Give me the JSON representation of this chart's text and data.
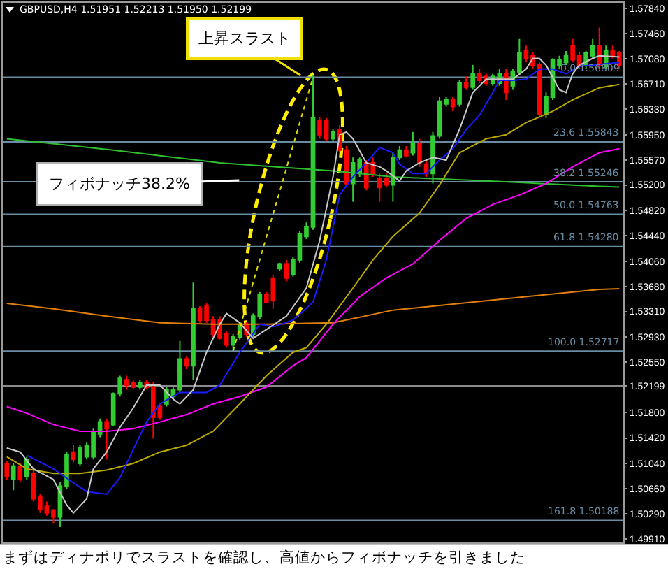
{
  "chart_data": {
    "type": "candlestick",
    "title": "GBPUSD,H4 1.51951 1.52213 1.51950 1.52199",
    "categories": [
      null,
      null,
      null,
      null,
      null,
      null,
      null,
      null,
      null,
      null,
      null,
      null,
      null,
      null,
      null,
      null,
      null,
      null,
      null,
      null,
      null,
      null,
      null,
      null,
      null,
      null,
      null,
      null,
      null,
      null,
      null,
      null,
      null,
      null,
      null,
      null,
      null,
      null,
      null,
      null,
      null,
      null,
      null,
      null,
      null,
      null,
      null,
      null,
      null,
      null,
      null,
      null,
      null,
      null,
      null,
      null,
      null,
      null,
      null,
      null,
      null,
      null,
      null,
      null,
      null,
      null,
      null,
      null,
      null,
      null,
      null,
      null,
      null,
      null,
      null,
      null,
      null,
      null,
      null,
      null,
      null,
      null,
      null,
      null,
      null,
      null,
      null,
      null,
      null,
      null,
      null,
      null,
      null
    ],
    "ohlc": [
      [
        1.5104,
        1.5108,
        1.508,
        1.5085
      ],
      [
        1.508,
        1.5104,
        1.5064,
        1.51
      ],
      [
        1.51,
        1.5104,
        1.5076,
        1.508
      ],
      [
        1.5085,
        1.5114,
        1.508,
        1.511
      ],
      [
        1.5089,
        1.5094,
        1.5047,
        1.5051
      ],
      [
        1.5055,
        1.5058,
        1.503,
        1.5036
      ],
      [
        1.504,
        1.5047,
        1.5026,
        1.503
      ],
      [
        1.5034,
        1.5036,
        1.5015,
        1.5024
      ],
      [
        1.5024,
        1.5076,
        1.5009,
        1.507
      ],
      [
        1.507,
        1.5121,
        1.5066,
        1.5117
      ],
      [
        1.5121,
        1.5131,
        1.5106,
        1.511
      ],
      [
        1.5104,
        1.5131,
        1.51,
        1.5127
      ],
      [
        1.5114,
        1.5135,
        1.511,
        1.5131
      ],
      [
        1.5114,
        1.5156,
        1.511,
        1.5152
      ],
      [
        1.5148,
        1.5171,
        1.5143,
        1.5166
      ],
      [
        1.5166,
        1.5171,
        1.511,
        1.5156
      ],
      [
        1.5162,
        1.521,
        1.516,
        1.5208
      ],
      [
        1.5208,
        1.5235,
        1.5204,
        1.5231
      ],
      [
        1.5229,
        1.5235,
        1.5214,
        1.5221
      ],
      [
        1.5225,
        1.5229,
        1.5214,
        1.5218
      ],
      [
        1.5218,
        1.5229,
        1.5214,
        1.5225
      ],
      [
        1.5225,
        1.5229,
        1.5214,
        1.5218
      ],
      [
        1.5218,
        1.5225,
        1.5141,
        1.5173
      ],
      [
        1.5189,
        1.5193,
        1.5169,
        1.5173
      ],
      [
        1.5193,
        1.5218,
        1.5189,
        1.5214
      ],
      [
        1.5204,
        1.5218,
        1.52,
        1.5214
      ],
      [
        1.5214,
        1.5287,
        1.521,
        1.526
      ],
      [
        1.526,
        1.5264,
        1.5245,
        1.525
      ],
      [
        1.525,
        1.5374,
        1.5229,
        1.5335
      ],
      [
        1.5335,
        1.5339,
        1.5314,
        1.5318
      ],
      [
        1.5339,
        1.5343,
        1.5314,
        1.5318
      ],
      [
        1.5318,
        1.5324,
        1.5293,
        1.5297
      ],
      [
        1.5318,
        1.5324,
        1.5289,
        1.5291
      ],
      [
        1.5297,
        1.5301,
        1.5277,
        1.5281
      ],
      [
        1.5281,
        1.5297,
        1.5272,
        1.5293
      ],
      [
        1.5293,
        1.5316,
        1.5289,
        1.5312
      ],
      [
        1.5312,
        1.5316,
        1.5293,
        1.5297
      ],
      [
        1.5297,
        1.5328,
        1.5293,
        1.5324
      ],
      [
        1.5324,
        1.536,
        1.532,
        1.5356
      ],
      [
        1.5356,
        1.536,
        1.5343,
        1.5345
      ],
      [
        1.5381,
        1.5385,
        1.5335,
        1.5347
      ],
      [
        1.5395,
        1.5404,
        1.5391,
        1.5402
      ],
      [
        1.5402,
        1.5408,
        1.5376,
        1.5381
      ],
      [
        1.5387,
        1.5412,
        1.5383,
        1.5408
      ],
      [
        1.5408,
        1.5451,
        1.5404,
        1.5447
      ],
      [
        1.5443,
        1.5464,
        1.5439,
        1.5457
      ],
      [
        1.5457,
        1.5684,
        1.5453,
        1.562
      ],
      [
        1.5616,
        1.5622,
        1.5589,
        1.5595
      ],
      [
        1.5616,
        1.562,
        1.5585,
        1.5589
      ],
      [
        1.5589,
        1.5603,
        1.5585,
        1.5599
      ],
      [
        1.5603,
        1.5609,
        1.5568,
        1.5572
      ],
      [
        1.5572,
        1.5578,
        1.5516,
        1.5522
      ],
      [
        1.5522,
        1.5561,
        1.5495,
        1.5553
      ],
      [
        1.5537,
        1.5561,
        1.5532,
        1.5557
      ],
      [
        1.5553,
        1.5557,
        1.5512,
        1.5516
      ],
      [
        1.5553,
        1.5561,
        1.5532,
        1.5537
      ],
      [
        1.553,
        1.5537,
        1.5495,
        1.5516
      ],
      [
        1.553,
        1.5537,
        1.5516,
        1.552
      ],
      [
        1.552,
        1.5568,
        1.5495,
        1.5561
      ],
      [
        1.5561,
        1.5578,
        1.5557,
        1.5572
      ],
      [
        1.5572,
        1.5578,
        1.5561,
        1.5564
      ],
      [
        1.5568,
        1.5599,
        1.5564,
        1.5582
      ],
      [
        1.5582,
        1.5589,
        1.5547,
        1.5553
      ],
      [
        1.5551,
        1.5557,
        1.5532,
        1.5537
      ],
      [
        1.5537,
        1.5599,
        1.5522,
        1.5593
      ],
      [
        1.5593,
        1.5651,
        1.5589,
        1.5645
      ],
      [
        1.5641,
        1.5651,
        1.5637,
        1.5647
      ],
      [
        1.5647,
        1.5651,
        1.563,
        1.5637
      ],
      [
        1.5641,
        1.5676,
        1.5637,
        1.5672
      ],
      [
        1.5672,
        1.5682,
        1.5662,
        1.5666
      ],
      [
        1.5666,
        1.5699,
        1.5662,
        1.5686
      ],
      [
        1.5686,
        1.5693,
        1.5672,
        1.5676
      ],
      [
        1.5682,
        1.5686,
        1.5668,
        1.5672
      ],
      [
        1.5672,
        1.5686,
        1.5668,
        1.5682
      ],
      [
        1.5672,
        1.5693,
        1.5668,
        1.5686
      ],
      [
        1.5686,
        1.5693,
        1.5647,
        1.5658
      ],
      [
        1.5668,
        1.5693,
        1.5662,
        1.5689
      ],
      [
        1.5689,
        1.5738,
        1.5684,
        1.5718
      ],
      [
        1.572,
        1.5728,
        1.5703,
        1.5709
      ],
      [
        1.5713,
        1.5718,
        1.5693,
        1.5699
      ],
      [
        1.5699,
        1.5703,
        1.5622,
        1.5626
      ],
      [
        1.5626,
        1.5658,
        1.562,
        1.5651
      ],
      [
        1.5651,
        1.5709,
        1.5647,
        1.5707
      ],
      [
        1.5699,
        1.5713,
        1.5693,
        1.5707
      ],
      [
        1.5703,
        1.572,
        1.5699,
        1.5713
      ],
      [
        1.5728,
        1.5738,
        1.5703,
        1.5707
      ],
      [
        1.5713,
        1.5718,
        1.5693,
        1.5699
      ],
      [
        1.5699,
        1.572,
        1.5693,
        1.5718
      ],
      [
        1.5713,
        1.5738,
        1.5709,
        1.5728
      ],
      [
        1.5728,
        1.5755,
        1.5693,
        1.5699
      ],
      [
        1.5697,
        1.5728,
        1.5693,
        1.572
      ],
      [
        1.572,
        1.5728,
        1.5709,
        1.5713
      ],
      [
        1.5718,
        1.572,
        1.5693,
        1.5699
      ]
    ],
    "colors": [
      "#ff0000",
      "#32cd32",
      "#ff0000",
      "#32cd32",
      "#ff0000",
      "#ff0000",
      "#ff0000",
      "#ff0000",
      "#32cd32",
      "#32cd32",
      "#ff0000",
      "#32cd32",
      "#32cd32",
      "#32cd32",
      "#32cd32",
      "#ff0000",
      "#32cd32",
      "#32cd32",
      "#ff0000",
      "#ff0000",
      "#32cd32",
      "#ff0000",
      "#ff0000",
      "#ff0000",
      "#32cd32",
      "#32cd32",
      "#32cd32",
      "#ff0000",
      "#32cd32",
      "#ff0000",
      "#ff0000",
      "#ff0000",
      "#ff0000",
      "#ff0000",
      "#32cd32",
      "#32cd32",
      "#ff0000",
      "#32cd32",
      "#32cd32",
      "#ff0000",
      "#ff0000",
      "#32cd32",
      "#ff0000",
      "#32cd32",
      "#32cd32",
      "#32cd32",
      "#32cd32",
      "#ff0000",
      "#ff0000",
      "#32cd32",
      "#ff0000",
      "#ff0000",
      "#32cd32",
      "#32cd32",
      "#ff0000",
      "#ff0000",
      "#ff0000",
      "#ff0000",
      "#32cd32",
      "#32cd32",
      "#ff0000",
      "#32cd32",
      "#ff0000",
      "#ff0000",
      "#32cd32",
      "#32cd32",
      "#32cd32",
      "#ff0000",
      "#32cd32",
      "#ff0000",
      "#32cd32",
      "#ff0000",
      "#ff0000",
      "#32cd32",
      "#32cd32",
      "#ff0000",
      "#32cd32",
      "#32cd32",
      "#ff0000",
      "#ff0000",
      "#ff0000",
      "#32cd32",
      "#32cd32",
      "#32cd32",
      "#32cd32",
      "#ff0000",
      "#ff0000",
      "#32cd32",
      "#32cd32",
      "#ff0000",
      "#32cd32",
      "#ff0000",
      "#ff0000"
    ],
    "series": [
      {
        "type": "line",
        "color": "#e27f0c",
        "values": [
          1.5343,
          null,
          null,
          null,
          null,
          null,
          null,
          1.5335,
          null,
          null,
          null,
          null,
          null,
          null,
          null,
          1.5324,
          null,
          null,
          null,
          null,
          null,
          null,
          null,
          1.5314,
          null,
          null,
          null,
          null,
          null,
          null,
          null,
          1.5312,
          null,
          null,
          null,
          null,
          null,
          null,
          null,
          1.5312,
          null,
          null,
          null,
          null,
          null,
          null,
          null,
          null,
          null,
          1.5314,
          null,
          null,
          null,
          null,
          null,
          null,
          null,
          null,
          1.5333,
          null,
          null,
          null,
          null,
          null,
          null,
          null,
          null,
          null,
          null,
          null,
          null,
          null,
          1.5347,
          null,
          null,
          null,
          null,
          null,
          null,
          null,
          null,
          null,
          null,
          null,
          null,
          null,
          null,
          null,
          null,
          1.5364,
          null,
          null,
          1.5365
        ]
      },
      {
        "type": "line",
        "color": "#2fbf2f",
        "values": [
          1.5589,
          null,
          null,
          null,
          null,
          null,
          null,
          null,
          null,
          null,
          null,
          null,
          null,
          null,
          null,
          null,
          1.5572,
          null,
          null,
          null,
          null,
          null,
          null,
          null,
          null,
          null,
          null,
          null,
          null,
          null,
          null,
          null,
          1.5553,
          null,
          null,
          null,
          null,
          null,
          null,
          null,
          null,
          null,
          null,
          null,
          null,
          null,
          null,
          null,
          null,
          1.5541,
          null,
          null,
          null,
          null,
          null,
          null,
          null,
          null,
          1.5532,
          null,
          null,
          null,
          null,
          null,
          null,
          null,
          null,
          null,
          null,
          null,
          null,
          null,
          1.5526,
          null,
          null,
          null,
          null,
          null,
          null,
          null,
          null,
          null,
          null,
          null,
          null,
          null,
          null,
          null,
          null,
          1.5518,
          null,
          null,
          1.5517
        ]
      },
      {
        "type": "line",
        "color": "#ff00ff",
        "values": [
          1.5189,
          null,
          null,
          1.5179,
          null,
          null,
          null,
          1.5162,
          null,
          null,
          null,
          1.5152,
          null,
          null,
          null,
          1.5152,
          null,
          null,
          null,
          1.5156,
          null,
          null,
          null,
          1.5166,
          null,
          null,
          null,
          1.5177,
          null,
          null,
          null,
          1.5193,
          null,
          null,
          null,
          1.5204,
          null,
          null,
          null,
          1.5218,
          null,
          null,
          null,
          1.525,
          null,
          1.5262,
          null,
          null,
          null,
          1.5312,
          null,
          null,
          null,
          1.5353,
          null,
          null,
          null,
          1.5381,
          null,
          null,
          null,
          1.5402,
          null,
          null,
          null,
          1.5437,
          null,
          null,
          null,
          1.547,
          null,
          null,
          null,
          1.5491,
          null,
          null,
          null,
          1.5505,
          null,
          null,
          null,
          1.5522,
          null,
          null,
          null,
          1.5547,
          null,
          null,
          null,
          1.5568,
          null,
          null,
          1.5574
        ]
      },
      {
        "type": "line",
        "color": "#b9a800",
        "values": [
          1.5114,
          null,
          null,
          1.5096,
          null,
          null,
          null,
          1.5089,
          null,
          null,
          null,
          1.5089,
          null,
          null,
          null,
          1.5094,
          null,
          null,
          null,
          1.5104,
          null,
          null,
          null,
          1.5121,
          null,
          null,
          null,
          1.5131,
          null,
          null,
          null,
          1.5152,
          null,
          null,
          null,
          1.5193,
          null,
          null,
          null,
          1.5235,
          null,
          null,
          null,
          1.527,
          null,
          1.5277,
          null,
          null,
          1.5312,
          null,
          null,
          null,
          1.5366,
          null,
          null,
          1.5408,
          null,
          null,
          1.5443,
          null,
          null,
          null,
          1.5478,
          null,
          null,
          1.552,
          null,
          null,
          1.5568,
          null,
          null,
          null,
          1.5589,
          null,
          null,
          1.5595,
          null,
          null,
          1.5613,
          null,
          null,
          null,
          1.563,
          null,
          null,
          1.5647,
          null,
          null,
          null,
          1.5665,
          null,
          null,
          1.567
        ]
      },
      {
        "type": "line",
        "color": "#1a1aff",
        "values": [
          null,
          null,
          null,
          1.5116,
          null,
          null,
          null,
          1.5096,
          null,
          null,
          1.5075,
          null,
          1.5062,
          null,
          null,
          1.5058,
          null,
          1.5083,
          null,
          1.5125,
          null,
          1.5166,
          null,
          1.5193,
          null,
          null,
          1.521,
          null,
          1.521,
          null,
          1.521,
          null,
          1.5221,
          null,
          null,
          1.527,
          null,
          null,
          1.5312,
          null,
          1.5308,
          null,
          null,
          1.5318,
          null,
          null,
          1.5345,
          null,
          1.5408,
          null,
          1.5505,
          null,
          1.5532,
          null,
          1.5553,
          null,
          1.5576,
          null,
          1.5568,
          1.5551,
          null,
          1.5537,
          null,
          1.5537,
          null,
          1.5557,
          null,
          1.5574,
          null,
          1.5603,
          null,
          1.5624,
          null,
          1.5658,
          1.5676,
          null,
          1.5676,
          null,
          1.5678,
          null,
          1.5693,
          null,
          1.5693,
          null,
          1.5686,
          null,
          1.5697,
          null,
          null,
          null,
          null,
          null,
          1.5703
        ]
      },
      {
        "type": "line",
        "color": "#c8c8c8",
        "values": [
          1.5127,
          null,
          1.5121,
          null,
          1.5096,
          null,
          null,
          1.508,
          null,
          1.5042,
          1.503,
          null,
          1.5051,
          1.5096,
          null,
          1.5121,
          null,
          1.5158,
          null,
          1.5187,
          null,
          1.5221,
          null,
          1.5221,
          null,
          1.52,
          1.5193,
          null,
          1.5214,
          null,
          1.527,
          null,
          1.5312,
          1.5328,
          null,
          1.5314,
          null,
          1.5291,
          null,
          1.5304,
          null,
          null,
          1.5324,
          null,
          null,
          1.5366,
          null,
          1.5437,
          null,
          1.5532,
          1.5595,
          1.5599,
          1.5589,
          null,
          1.5553,
          null,
          1.5547,
          1.5541,
          null,
          1.5526,
          1.5541,
          null,
          1.5553,
          null,
          1.5561,
          null,
          1.5557,
          null,
          1.5603,
          null,
          1.5658,
          null,
          1.5678,
          null,
          1.5678,
          null,
          1.5678,
          null,
          1.5693,
          1.5709,
          1.5709,
          1.5699,
          null,
          1.5662,
          1.5658,
          1.5686,
          1.5699,
          null,
          1.5709,
          1.5713,
          null,
          null,
          1.5711
        ]
      },
      {
        "type": "line",
        "color": "#d8d800",
        "line_style": "dotted",
        "values": [
          null,
          null,
          null,
          null,
          null,
          null,
          null,
          null,
          null,
          null,
          null,
          null,
          null,
          null,
          null,
          null,
          null,
          null,
          null,
          null,
          null,
          null,
          null,
          null,
          null,
          null,
          null,
          null,
          null,
          null,
          null,
          null,
          null,
          null,
          1.5272,
          null,
          null,
          null,
          null,
          null,
          null,
          null,
          null,
          null,
          null,
          null,
          1.5681,
          null,
          null,
          null,
          null,
          null,
          null,
          null,
          null,
          null,
          null,
          null,
          null,
          null,
          null,
          null,
          null,
          null,
          null,
          null,
          null,
          null,
          null,
          null,
          null,
          null,
          null,
          null,
          null,
          null,
          null,
          null,
          null,
          null,
          null,
          null,
          null,
          null,
          null,
          null,
          null,
          null,
          null,
          null,
          null,
          null,
          null
        ]
      }
    ],
    "ylim": [
      1.4986,
      1.5792
    ],
    "yticks": [
      {
        "value": 1.5784,
        "label": "1.57840"
      },
      {
        "value": 1.5746,
        "label": "1.57460"
      },
      {
        "value": 1.5708,
        "label": "1.57080"
      },
      {
        "value": 1.5671,
        "label": "1.56710"
      },
      {
        "value": 1.5633,
        "label": "1.56330"
      },
      {
        "value": 1.5595,
        "label": "1.55950"
      },
      {
        "value": 1.5557,
        "label": "1.55570"
      },
      {
        "value": 1.552,
        "label": "1.55200"
      },
      {
        "value": 1.5482,
        "label": "1.54820"
      },
      {
        "value": 1.5444,
        "label": "1.54440"
      },
      {
        "value": 1.5406,
        "label": "1.54060"
      },
      {
        "value": 1.5368,
        "label": "1.53680"
      },
      {
        "value": 1.5331,
        "label": "1.53310"
      },
      {
        "value": 1.5293,
        "label": "1.52930"
      },
      {
        "value": 1.5255,
        "label": "1.52550"
      },
      1.52199,
      {
        "value": 1.518,
        "label": "1.51800"
      },
      {
        "value": 1.5142,
        "label": "1.51420"
      },
      {
        "value": 1.5104,
        "label": "1.51040"
      },
      {
        "value": 1.5066,
        "label": "1.50660"
      },
      {
        "value": 1.5029,
        "label": "1.50290"
      },
      {
        "value": 1.4991,
        "label": "1.49910"
      }
    ],
    "tick_labels": "y",
    "ref_lines": [
      {
        "axis": "y",
        "value": 1.56809,
        "label": "0.0 1.56809",
        "color": "#6a8ca3"
      },
      {
        "axis": "y",
        "value": 1.55843,
        "label": "23.6 1.55843",
        "color": "#6a8ca3"
      },
      {
        "axis": "y",
        "value": 1.55246,
        "label": "38.2 1.55246",
        "color": "#6a8ca3"
      },
      {
        "axis": "y",
        "value": 1.54763,
        "label": "50.0 1.54763",
        "color": "#6a8ca3"
      },
      {
        "axis": "y",
        "value": 1.5428,
        "label": "61.8 1.54280",
        "color": "#6a8ca3"
      },
      {
        "axis": "y",
        "value": 1.52717,
        "label": "100.0 1.52717",
        "color": "#6a8ca3"
      },
      {
        "axis": "y",
        "value": 1.50188,
        "label": "161.8 1.50188",
        "color": "#6a8ca3"
      },
      {
        "axis": "y",
        "value": 1.52199,
        "color": "#8a8a8a"
      }
    ],
    "annotations": [
      "上昇スラスト",
      "フィボナッチ38.2%",
      "まずはディナポリでスラストを確認し、高値からフィボナッチを引きました"
    ]
  }
}
